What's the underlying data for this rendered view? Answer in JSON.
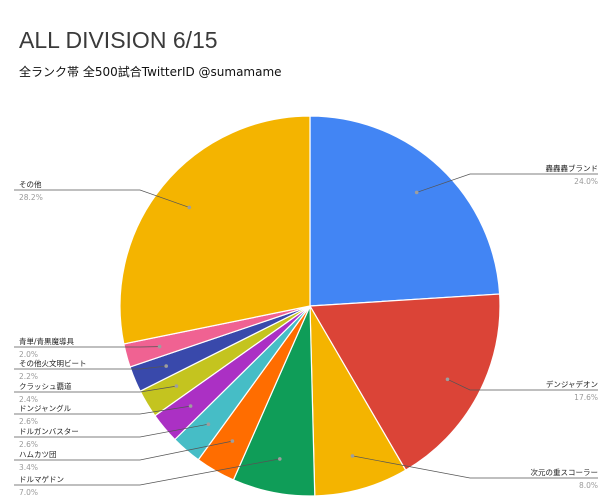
{
  "chart_data": {
    "type": "pie",
    "title": "ALL DIVISION 6/15",
    "subtitle": "全ランク帯 全500試合TwitterID @sumamame",
    "categories": [
      "轟轟轟ブランド",
      "デンジャデオン",
      "次元の重スコーラー",
      "ドルマゲドン",
      "ハムカツ団",
      "ドルガンバスター",
      "ドンジャングル",
      "クラッシュ覇道",
      "その他火文明ビート",
      "青単/青黒魔導具",
      "その他"
    ],
    "values": [
      24.0,
      17.6,
      8.0,
      7.0,
      3.4,
      2.6,
      2.6,
      2.4,
      2.2,
      2.0,
      28.2
    ],
    "percent_labels": [
      "24.0%",
      "17.6%",
      "8.0%",
      "7.0%",
      "3.4%",
      "2.6%",
      "2.6%",
      "2.4%",
      "2.2%",
      "2.0%",
      "28.2%"
    ],
    "colors": [
      "#4285f4",
      "#db4437",
      "#f4b400",
      "#0f9d58",
      "#ff6d00",
      "#46bdc6",
      "#ab30c4",
      "#c4c41f",
      "#3949ab",
      "#f06292",
      "#f4b400"
    ],
    "legend": "labels-outside"
  }
}
